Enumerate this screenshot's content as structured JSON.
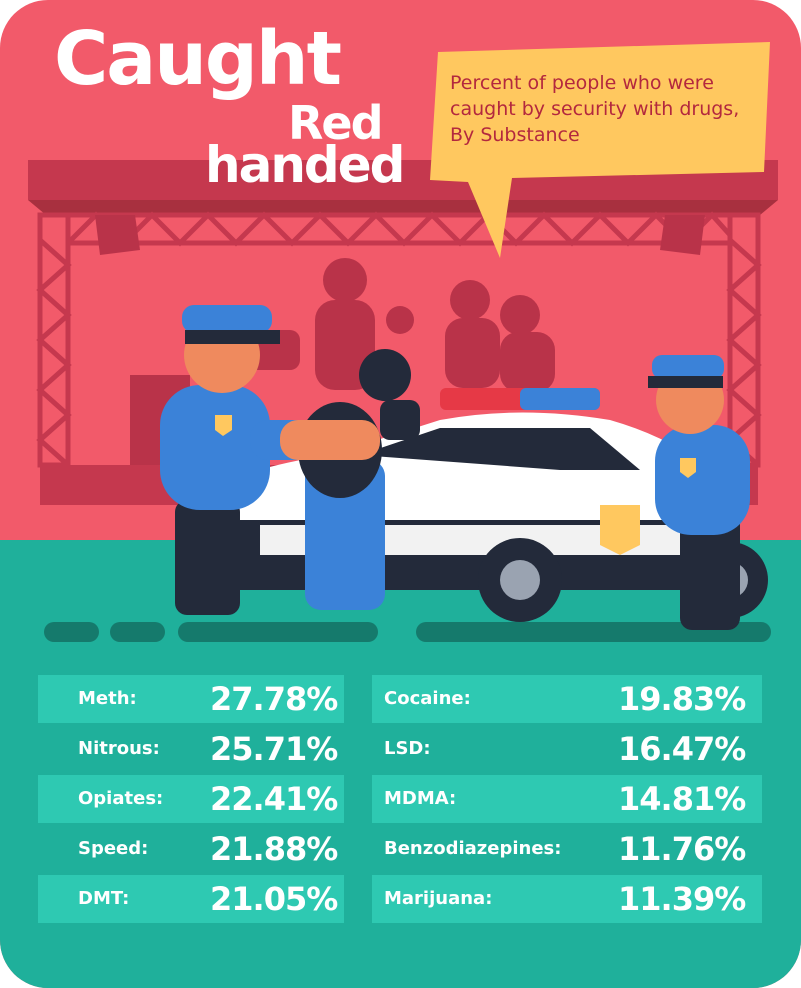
{
  "title": {
    "line1": "Caught",
    "line2": "Red",
    "line3": "handed"
  },
  "subtitle": "Percent of people who were caught by security with drugs, By Substance",
  "colors": {
    "background": "#f25a6a",
    "stage": "#c5384e",
    "teal_floor": "#1fb09b",
    "table_shade": "#2ec9b2",
    "callout": "#ffc85f",
    "police_blue": "#3b82d8"
  },
  "left_column": [
    {
      "label": "Meth:",
      "value": "27.78%"
    },
    {
      "label": "Nitrous:",
      "value": "25.71%"
    },
    {
      "label": "Opiates:",
      "value": "22.41%"
    },
    {
      "label": "Speed:",
      "value": "21.88%"
    },
    {
      "label": "DMT:",
      "value": "21.05%"
    }
  ],
  "right_column": [
    {
      "label": "Cocaine:",
      "value": "19.83%"
    },
    {
      "label": "LSD:",
      "value": "16.47%"
    },
    {
      "label": "MDMA:",
      "value": "14.81%"
    },
    {
      "label": "Benzodiazepines:",
      "value": "11.76%"
    },
    {
      "label": "Marijuana:",
      "value": "11.39%"
    }
  ]
}
